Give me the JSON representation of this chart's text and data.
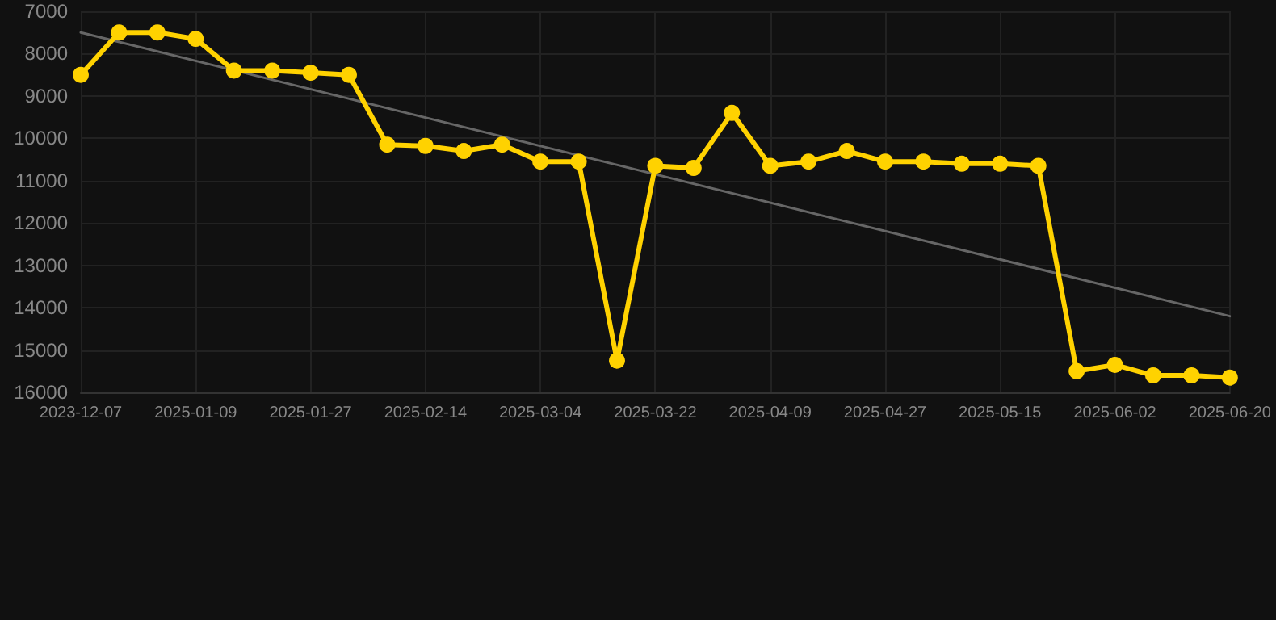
{
  "chart_data": {
    "type": "line",
    "categories": [
      "2023-12-07",
      null,
      null,
      "2025-01-09",
      null,
      null,
      "2025-01-27",
      null,
      null,
      "2025-02-14",
      null,
      null,
      "2025-03-04",
      null,
      null,
      "2025-03-22",
      null,
      null,
      "2025-04-09",
      null,
      null,
      "2025-04-27",
      null,
      null,
      "2025-05-15",
      null,
      null,
      "2025-06-02",
      null,
      null,
      "2025-06-20"
    ],
    "series": [
      {
        "color": "#ffd200",
        "marker": "circle",
        "values": [
          8500,
          7500,
          7500,
          7650,
          8400,
          8400,
          8450,
          8500,
          10150,
          10180,
          10300,
          10150,
          10550,
          10550,
          15250,
          10650,
          10700,
          9400,
          10650,
          10550,
          10300,
          10550,
          10550,
          10600,
          10600,
          10650,
          15500,
          15350,
          15600,
          15600,
          15650
        ]
      },
      {
        "color": "#666666",
        "marker": "none",
        "values": [
          7500,
          null,
          null,
          null,
          null,
          null,
          null,
          null,
          null,
          null,
          null,
          null,
          null,
          null,
          null,
          null,
          null,
          null,
          null,
          null,
          null,
          null,
          null,
          null,
          null,
          null,
          null,
          null,
          null,
          null,
          14200
        ]
      }
    ],
    "ylim": [
      16000,
      7000
    ],
    "yticks": [
      7000,
      8000,
      9000,
      10000,
      11000,
      12000,
      13000,
      14000,
      15000,
      16000
    ],
    "grid": true
  }
}
